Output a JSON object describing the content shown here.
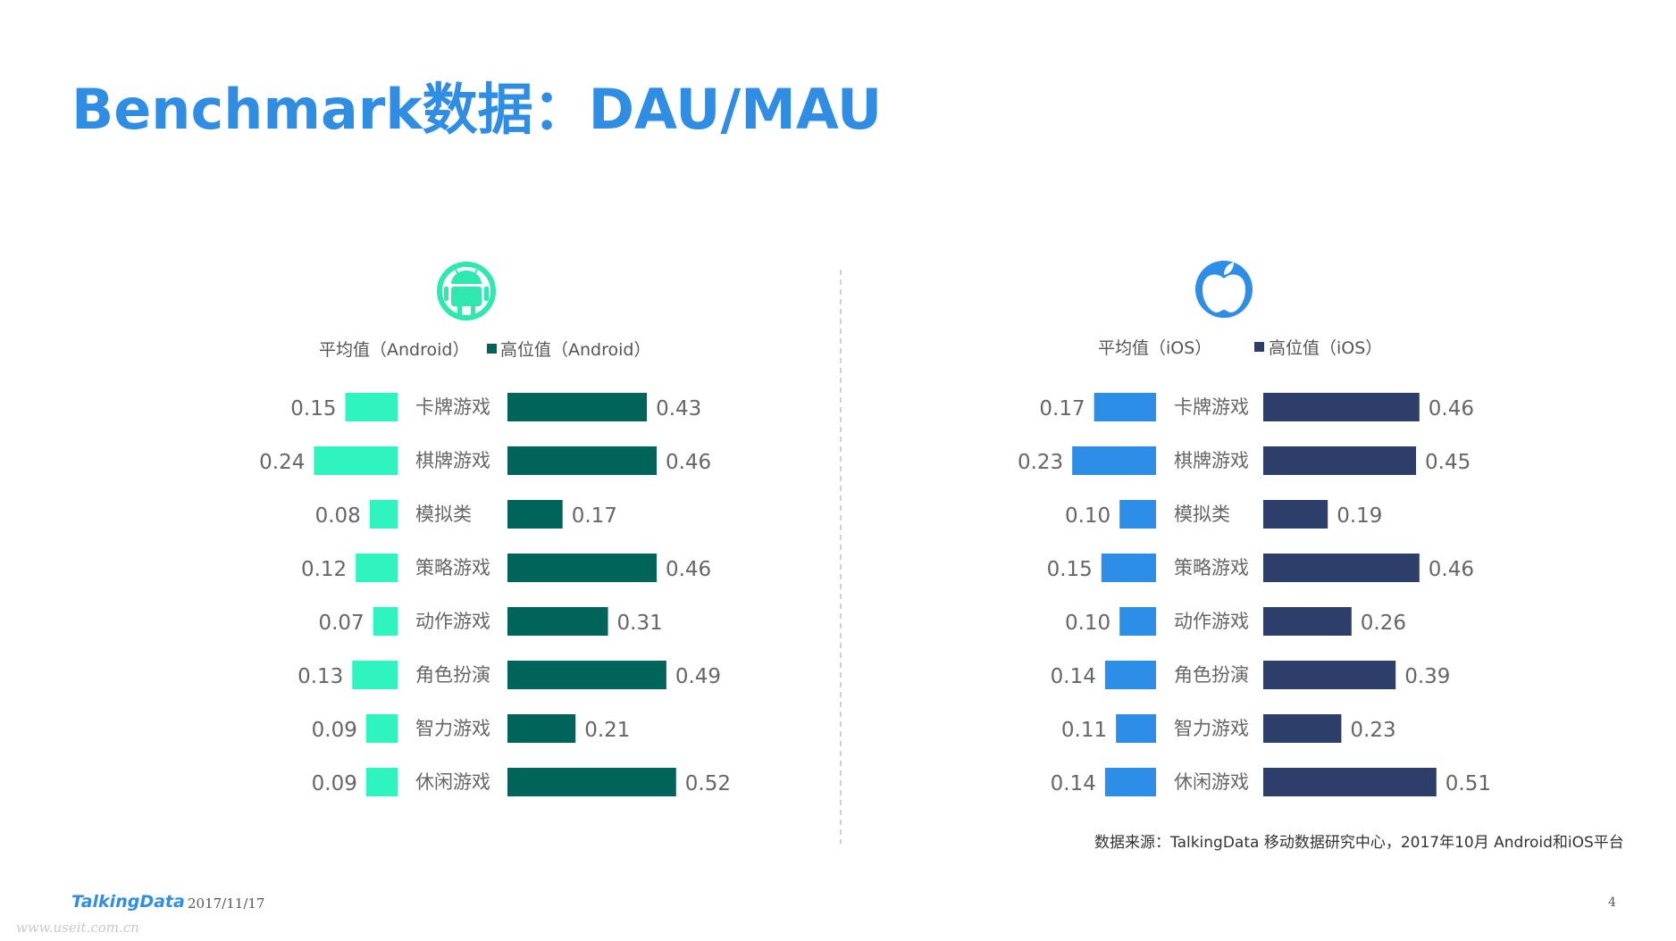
{
  "title": "Benchmark数据：DAU/MAU",
  "source": "数据来源：TalkingData 移动数据研究中心，2017年10月 Android和iOS平台",
  "footer": {
    "logo": "TalkingData",
    "date": "2017/11/17",
    "page": "4"
  },
  "watermark": "www.useit.com.cn",
  "colors": {
    "title": "#2f8de4",
    "android_avg": "#2ef5c0",
    "android_high": "#00645a",
    "android_icon": "#2ee8b0",
    "ios_avg": "#2d8ee8",
    "ios_high": "#2d3e6b",
    "ios_icon": "#2d8ee8"
  },
  "chart_data": [
    {
      "type": "bar",
      "platform_icon": "android-icon",
      "categories": [
        "卡牌游戏",
        "棋牌游戏",
        "模拟类",
        "策略游戏",
        "动作游戏",
        "角色扮演",
        "智力游戏",
        "休闲游戏"
      ],
      "series": [
        {
          "name": "平均值（Android）",
          "values": [
            0.15,
            0.24,
            0.08,
            0.12,
            0.07,
            0.13,
            0.09,
            0.09
          ]
        },
        {
          "name": "高位值（Android）",
          "values": [
            0.43,
            0.46,
            0.17,
            0.46,
            0.31,
            0.49,
            0.21,
            0.52
          ]
        }
      ],
      "value_labels": {
        "avg": [
          "0.15",
          "0.24",
          "0.08",
          "0.12",
          "0.07",
          "0.13",
          "0.09",
          "0.09"
        ],
        "high": [
          "0.43",
          "0.46",
          "0.17",
          "0.46",
          "0.31",
          "0.49",
          "0.21",
          "0.52"
        ]
      },
      "legend_position": "top"
    },
    {
      "type": "bar",
      "platform_icon": "apple-icon",
      "categories": [
        "卡牌游戏",
        "棋牌游戏",
        "模拟类",
        "策略游戏",
        "动作游戏",
        "角色扮演",
        "智力游戏",
        "休闲游戏"
      ],
      "series": [
        {
          "name": "平均值（iOS）",
          "values": [
            0.17,
            0.23,
            0.1,
            0.15,
            0.1,
            0.14,
            0.11,
            0.14
          ]
        },
        {
          "name": "高位值（iOS）",
          "values": [
            0.46,
            0.45,
            0.19,
            0.46,
            0.26,
            0.39,
            0.23,
            0.51
          ]
        }
      ],
      "value_labels": {
        "avg": [
          "0.17",
          "0.23",
          "0.10",
          "0.15",
          "0.10",
          "0.14",
          "0.11",
          "0.14"
        ],
        "high": [
          "0.46",
          "0.45",
          "0.19",
          "0.46",
          "0.26",
          "0.39",
          "0.23",
          "0.51"
        ]
      },
      "legend_position": "top"
    }
  ]
}
